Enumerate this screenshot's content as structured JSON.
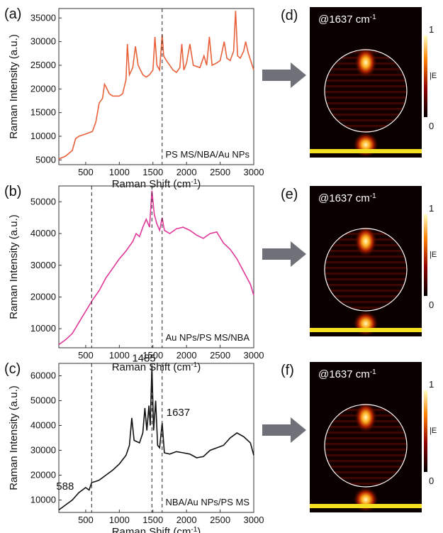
{
  "chart_data": [
    {
      "type": "line",
      "panel": "(a)",
      "ylabel": "Raman Intensity (a.u.)",
      "xlabel": [
        "Raman Shift (cm",
        "-1",
        ")"
      ],
      "annotation": "PS MS/NBA/Au NPs",
      "color": "#e8613a",
      "xlim": [
        100,
        3000
      ],
      "xticks": [
        500,
        1000,
        1500,
        2000,
        2500,
        3000
      ],
      "ylim": [
        4000,
        37000
      ],
      "yticks": [
        5000,
        10000,
        15000,
        20000,
        25000,
        30000,
        35000
      ],
      "vlines": [
        1637
      ],
      "x": [
        100,
        200,
        300,
        350,
        400,
        500,
        600,
        650,
        700,
        750,
        780,
        800,
        850,
        900,
        1000,
        1050,
        1100,
        1120,
        1150,
        1200,
        1240,
        1280,
        1350,
        1400,
        1450,
        1500,
        1530,
        1560,
        1600,
        1637,
        1660,
        1700,
        1750,
        1800,
        1850,
        1900,
        1930,
        1960,
        2000,
        2050,
        2100,
        2200,
        2260,
        2300,
        2340,
        2380,
        2450,
        2500,
        2560,
        2600,
        2650,
        2700,
        2730,
        2760,
        2800,
        2850,
        2880,
        2920,
        3000
      ],
      "values": [
        5200,
        5800,
        7000,
        9500,
        10000,
        10500,
        11000,
        13000,
        17000,
        18000,
        21000,
        20500,
        19000,
        18500,
        18500,
        19000,
        22000,
        29500,
        23000,
        24500,
        29000,
        25000,
        23000,
        22500,
        23000,
        24000,
        31000,
        25000,
        24000,
        31500,
        27000,
        26000,
        25000,
        24000,
        23500,
        24500,
        29500,
        24000,
        25500,
        29500,
        25000,
        24500,
        27000,
        25000,
        31000,
        25000,
        25500,
        26000,
        30000,
        26500,
        26000,
        28000,
        36500,
        27000,
        26500,
        28000,
        30000,
        27500,
        24000
      ],
      "peak_labels": []
    },
    {
      "type": "line",
      "panel": "(b)",
      "ylabel": "Raman Intensity (a.u.)",
      "xlabel": [
        "Raman Shift (cm",
        "-1",
        ")"
      ],
      "annotation": "Au NPs/PS MS/NBA",
      "color": "#e0389a",
      "xlim": [
        100,
        3000
      ],
      "xticks": [
        500,
        1000,
        1500,
        2000,
        2500,
        3000
      ],
      "ylim": [
        4000,
        55000
      ],
      "yticks": [
        10000,
        20000,
        30000,
        40000,
        50000
      ],
      "vlines": [
        588,
        1485,
        1637
      ],
      "x": [
        100,
        200,
        300,
        400,
        500,
        600,
        700,
        800,
        900,
        1000,
        1100,
        1200,
        1250,
        1300,
        1350,
        1400,
        1450,
        1485,
        1520,
        1560,
        1600,
        1637,
        1670,
        1750,
        1850,
        1950,
        2050,
        2150,
        2250,
        2350,
        2450,
        2550,
        2650,
        2750,
        2850,
        2950,
        3000
      ],
      "values": [
        5000,
        6500,
        8500,
        12000,
        15500,
        19000,
        22000,
        26000,
        29000,
        32000,
        34500,
        37500,
        40000,
        39000,
        42000,
        44500,
        42000,
        53500,
        46000,
        43000,
        41000,
        45000,
        41000,
        40000,
        41500,
        42000,
        41000,
        39500,
        38500,
        40000,
        40500,
        37000,
        35000,
        32000,
        28000,
        24000,
        20500
      ],
      "peak_labels": []
    },
    {
      "type": "line",
      "panel": "(c)",
      "ylabel": "Raman Intensity (a.u.)",
      "xlabel": [
        "Raman Shift (cm",
        "-1",
        ")"
      ],
      "annotation": "NBA/Au NPs/PS MS",
      "color": "#111111",
      "xlim": [
        100,
        3000
      ],
      "xticks": [
        500,
        1000,
        1500,
        2000,
        2500,
        3000
      ],
      "ylim": [
        5000,
        65000
      ],
      "yticks": [
        10000,
        20000,
        30000,
        40000,
        50000,
        60000
      ],
      "vlines": [
        588,
        1485,
        1637
      ],
      "x": [
        100,
        200,
        300,
        400,
        500,
        550,
        588,
        650,
        700,
        800,
        900,
        1000,
        1100,
        1150,
        1185,
        1220,
        1300,
        1350,
        1380,
        1410,
        1440,
        1460,
        1485,
        1510,
        1540,
        1570,
        1600,
        1637,
        1670,
        1750,
        1850,
        1950,
        2050,
        2150,
        2250,
        2350,
        2450,
        2550,
        2650,
        2750,
        2850,
        2950,
        3000
      ],
      "values": [
        6000,
        8000,
        10000,
        13000,
        15000,
        14000,
        17000,
        17500,
        18000,
        20000,
        22000,
        24500,
        28000,
        32000,
        43000,
        34000,
        33000,
        37000,
        47000,
        38000,
        48000,
        40000,
        64000,
        38000,
        50000,
        32000,
        31000,
        41000,
        29000,
        28500,
        29500,
        29000,
        28500,
        27000,
        27500,
        30000,
        31000,
        32000,
        35000,
        37000,
        35500,
        33000,
        28000
      ],
      "peak_labels": [
        "1485",
        "1637",
        "588"
      ]
    }
  ],
  "panels": [
    {
      "label": "(d)",
      "text": "@1637 cm",
      "sup": "-1",
      "scale_max": "1",
      "scale_min": "0",
      "scale_label": "|E"
    },
    {
      "label": "(e)",
      "text": "@1637 cm",
      "sup": "-1",
      "scale_max": "1",
      "scale_min": "0",
      "scale_label": "|E"
    },
    {
      "label": "(f)",
      "text": "@1637 cm",
      "sup": "-1",
      "scale_max": "1",
      "scale_min": "0",
      "scale_label": "|E"
    }
  ]
}
